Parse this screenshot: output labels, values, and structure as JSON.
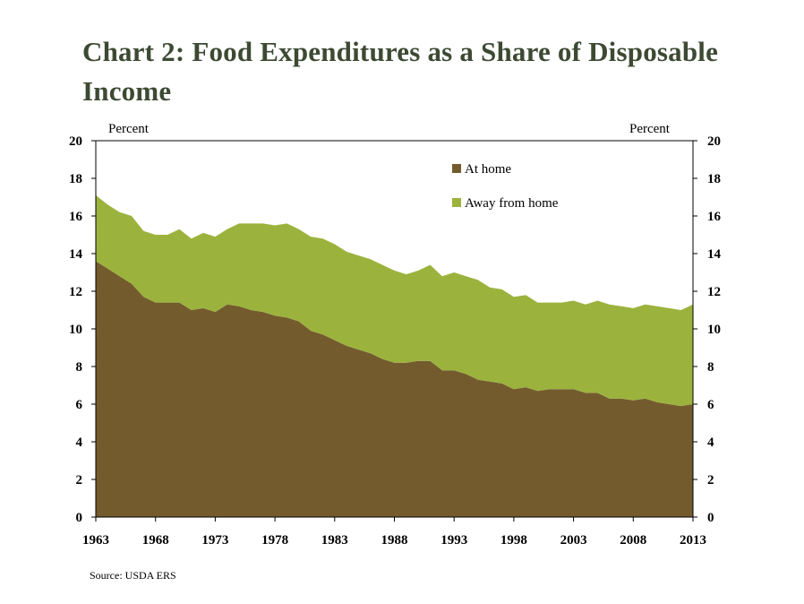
{
  "title": "Chart 2: Food Expenditures as a Share of Disposable Income",
  "source": "Source: USDA ERS",
  "chart_data": {
    "type": "area",
    "stacked": true,
    "title": "Chart 2: Food Expenditures as a Share of Disposable Income",
    "y_unit_left": "Percent",
    "y_unit_right": "Percent",
    "ylim": [
      0,
      20
    ],
    "y_ticks": [
      "0",
      "2",
      "4",
      "6",
      "8",
      "10",
      "12",
      "14",
      "16",
      "18",
      "20"
    ],
    "xlim": [
      1963,
      2013
    ],
    "x_ticks": [
      "1963",
      "1968",
      "1973",
      "1978",
      "1983",
      "1988",
      "1993",
      "1998",
      "2003",
      "2008",
      "2013"
    ],
    "legend_position": "top-center",
    "grid": false,
    "x": [
      1963,
      1964,
      1965,
      1966,
      1967,
      1968,
      1969,
      1970,
      1971,
      1972,
      1973,
      1974,
      1975,
      1976,
      1977,
      1978,
      1979,
      1980,
      1981,
      1982,
      1983,
      1984,
      1985,
      1986,
      1987,
      1988,
      1989,
      1990,
      1991,
      1992,
      1993,
      1994,
      1995,
      1996,
      1997,
      1998,
      1999,
      2000,
      2001,
      2002,
      2003,
      2004,
      2005,
      2006,
      2007,
      2008,
      2009,
      2010,
      2011,
      2012,
      2013
    ],
    "series": [
      {
        "name": "At home",
        "color": "#745b2e",
        "values": [
          13.6,
          13.2,
          12.8,
          12.4,
          11.7,
          11.4,
          11.4,
          11.4,
          11.0,
          11.1,
          10.9,
          11.3,
          11.2,
          11.0,
          10.9,
          10.7,
          10.6,
          10.4,
          9.9,
          9.7,
          9.4,
          9.1,
          8.9,
          8.7,
          8.4,
          8.2,
          8.2,
          8.3,
          8.3,
          7.8,
          7.8,
          7.6,
          7.3,
          7.2,
          7.1,
          6.8,
          6.9,
          6.7,
          6.8,
          6.8,
          6.8,
          6.6,
          6.6,
          6.3,
          6.3,
          6.2,
          6.3,
          6.1,
          6.0,
          5.9,
          6.0
        ]
      },
      {
        "name": "Away from home",
        "color": "#9bb33d",
        "values": [
          3.5,
          3.4,
          3.4,
          3.6,
          3.5,
          3.6,
          3.6,
          3.9,
          3.8,
          4.0,
          4.0,
          4.0,
          4.4,
          4.6,
          4.7,
          4.8,
          5.0,
          4.9,
          5.0,
          5.1,
          5.1,
          5.0,
          5.0,
          5.0,
          5.0,
          4.9,
          4.7,
          4.8,
          5.1,
          5.0,
          5.2,
          5.2,
          5.3,
          5.0,
          5.0,
          4.9,
          4.9,
          4.7,
          4.6,
          4.6,
          4.7,
          4.7,
          4.9,
          5.0,
          4.9,
          4.9,
          5.0,
          5.1,
          5.1,
          5.1,
          5.3
        ]
      }
    ]
  }
}
